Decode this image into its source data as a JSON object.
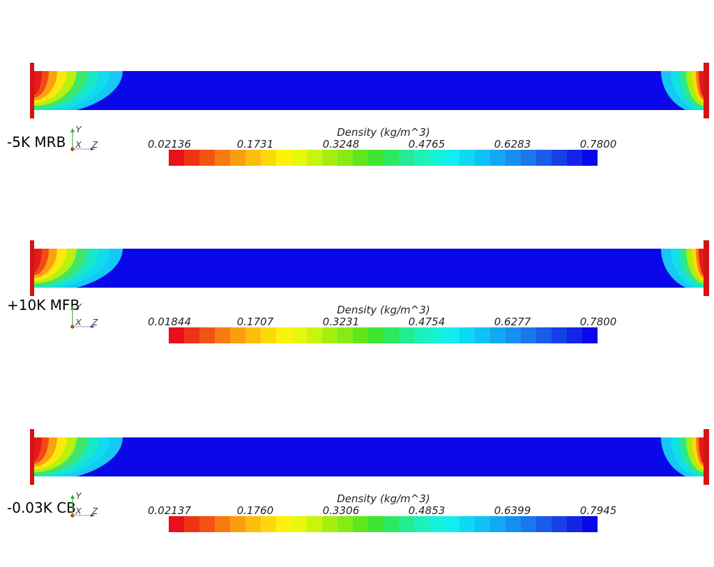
{
  "legend_colors": [
    "#e8101a",
    "#ee3214",
    "#f25314",
    "#f77b12",
    "#fb9d10",
    "#fdbd0e",
    "#fdd90c",
    "#fdf20a",
    "#e8f80a",
    "#c8f40e",
    "#a6ee12",
    "#86ea16",
    "#60e61c",
    "#3ee632",
    "#2ee860",
    "#26eb90",
    "#1ef0b8",
    "#16f2d8",
    "#10eeee",
    "#0ed8f4",
    "#10c0f6",
    "#12a8f4",
    "#1690f0",
    "#1878ec",
    "#1a5cea",
    "#1640e6",
    "#1424e4",
    "#0a08e8"
  ],
  "panels": [
    {
      "case_label": "-5K MRB",
      "legend": {
        "title": "Density (kg/m^3)",
        "ticks": [
          "0.02136",
          "0.1731",
          "0.3248",
          "0.4765",
          "0.6283",
          "0.7800"
        ]
      },
      "axes": {
        "y": "Y",
        "x": "X",
        "z": "Z"
      }
    },
    {
      "case_label": "+10K MFB",
      "legend": {
        "title": "Density (kg/m^3)",
        "ticks": [
          "0.01844",
          "0.1707",
          "0.3231",
          "0.4754",
          "0.6277",
          "0.7800"
        ]
      },
      "axes": {
        "y": "Y",
        "x": "X",
        "z": "Z"
      }
    },
    {
      "case_label": "-0.03K CB",
      "legend": {
        "title": "Density (kg/m^3)",
        "ticks": [
          "0.02137",
          "0.1760",
          "0.3306",
          "0.4853",
          "0.6399",
          "0.7945"
        ]
      },
      "axes": {
        "y": "Y",
        "x": "X",
        "z": "Z"
      }
    }
  ]
}
